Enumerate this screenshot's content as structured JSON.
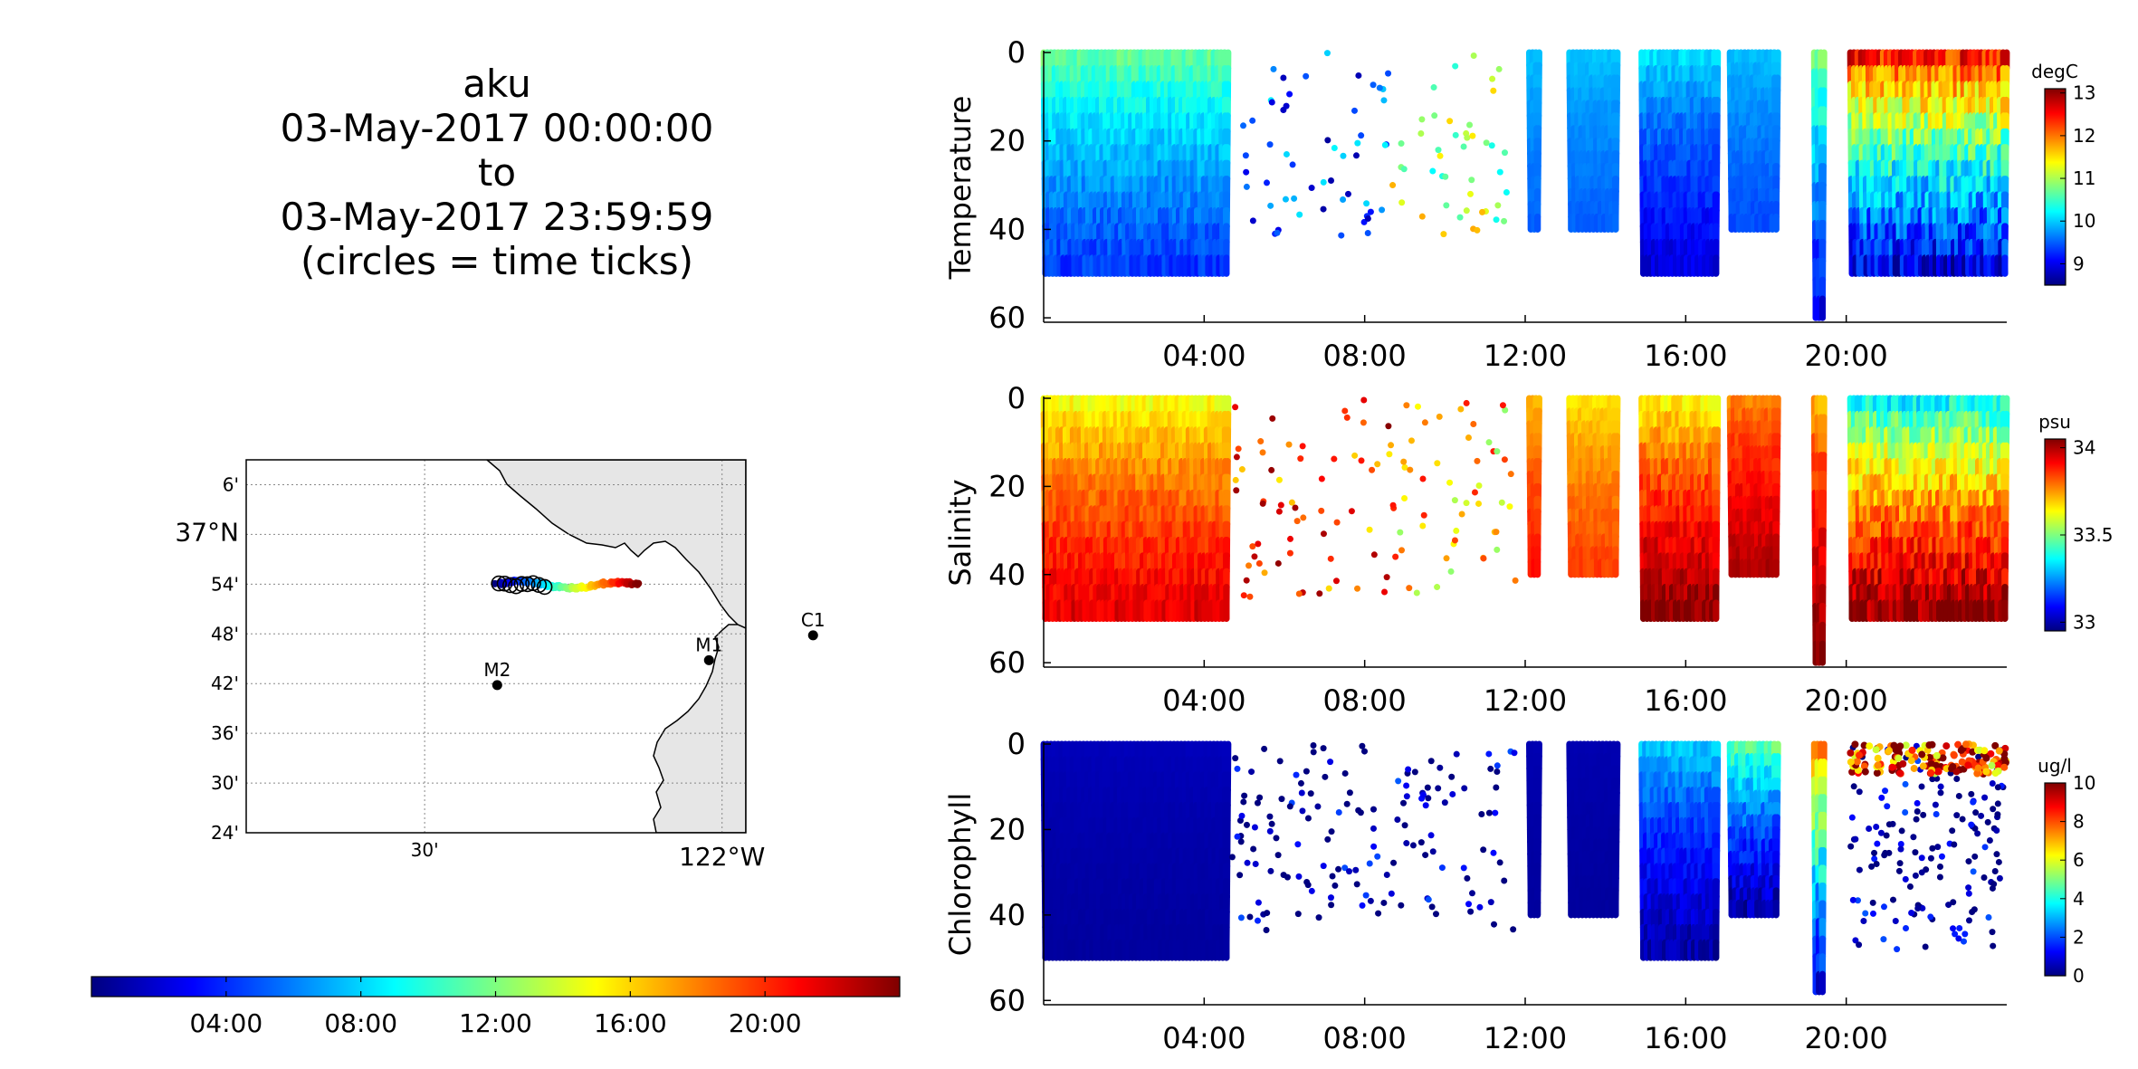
{
  "title": {
    "lines": [
      "aku",
      "03-May-2017 00:00:00",
      "to",
      "03-May-2017 23:59:59",
      "(circles = time ticks)"
    ]
  },
  "colors": {
    "jet": [
      "#00007f",
      "#0000ff",
      "#007fff",
      "#00ffff",
      "#7fff7f",
      "#ffff00",
      "#ff7f00",
      "#ff0000",
      "#7f0000"
    ],
    "land": "#e6e6e6",
    "station": "#000000"
  },
  "map": {
    "lat_labels": [
      "6'",
      "37°N",
      "54'",
      "48'",
      "42'",
      "36'",
      "30'",
      "24'"
    ],
    "lat_values": [
      37.1,
      37.0,
      36.9,
      36.8,
      36.7,
      36.6,
      36.5,
      36.4
    ],
    "lon_labels": [
      "30'",
      "122°W"
    ],
    "lon_values": [
      -122.5,
      -122.0
    ],
    "lat_range": [
      36.4,
      37.15
    ],
    "lon_range": [
      -122.8,
      -121.96
    ],
    "stations": [
      {
        "name": "C1",
        "lon": -121.847,
        "lat": 36.797
      },
      {
        "name": "M1",
        "lon": -122.022,
        "lat": 36.747
      },
      {
        "name": "M2",
        "lon": -122.378,
        "lat": 36.697
      }
    ],
    "track_start": {
      "lon": -122.38,
      "lat": 36.9
    },
    "track_end": {
      "lon": -122.14,
      "lat": 36.897
    }
  },
  "time_colorbar": {
    "tick_labels": [
      "04:00",
      "08:00",
      "12:00",
      "16:00",
      "20:00"
    ],
    "tick_hours": [
      4,
      8,
      12,
      16,
      20
    ],
    "range_hours": [
      0,
      24
    ]
  },
  "chart_data": [
    {
      "type": "scatter",
      "ylabel": "Temperature",
      "x_tick_labels": [
        "04:00",
        "08:00",
        "12:00",
        "16:00",
        "20:00"
      ],
      "x_tick_hours": [
        4,
        8,
        12,
        16,
        20
      ],
      "xlim_hours": [
        0,
        24
      ],
      "y_ticks": [
        0,
        20,
        40,
        60
      ],
      "ylim": [
        0,
        61
      ],
      "y_reversed": true,
      "colorbar": {
        "unit": "degC",
        "ticks": [
          9,
          10,
          11,
          12,
          13
        ],
        "range": [
          8.5,
          13.1
        ]
      },
      "profile_segments": [
        {
          "start": 0.0,
          "end": 4.6,
          "max_depth": 50,
          "surface": 10.8,
          "bottom": 9.3
        },
        {
          "start": 12.1,
          "end": 12.35,
          "max_depth": 40,
          "surface": 10.0,
          "bottom": 9.5
        },
        {
          "start": 13.1,
          "end": 14.3,
          "max_depth": 40,
          "surface": 10.0,
          "bottom": 9.5
        },
        {
          "start": 14.9,
          "end": 16.8,
          "max_depth": 50,
          "surface": 10.2,
          "bottom": 8.9
        },
        {
          "start": 17.1,
          "end": 18.3,
          "max_depth": 40,
          "surface": 10.0,
          "bottom": 9.4
        },
        {
          "start": 19.2,
          "end": 19.45,
          "max_depth": 60,
          "surface": 11.0,
          "bottom": 9.0
        },
        {
          "start": 20.1,
          "end": 24.0,
          "max_depth": 50,
          "surface": 12.8,
          "bottom": 8.9
        }
      ],
      "scatter_windows": [
        {
          "start": 4.7,
          "end": 8.6,
          "count": 55,
          "max_depth": 42,
          "value": 9.4
        },
        {
          "start": 8.6,
          "end": 11.6,
          "count": 45,
          "max_depth": 42,
          "value": 11.0
        }
      ]
    },
    {
      "type": "scatter",
      "ylabel": "Salinity",
      "x_tick_labels": [
        "04:00",
        "08:00",
        "12:00",
        "16:00",
        "20:00"
      ],
      "x_tick_hours": [
        4,
        8,
        12,
        16,
        20
      ],
      "xlim_hours": [
        0,
        24
      ],
      "y_ticks": [
        0,
        20,
        40,
        60
      ],
      "ylim": [
        0,
        61
      ],
      "y_reversed": true,
      "colorbar": {
        "unit": "psu",
        "ticks": [
          33,
          33.5,
          34
        ],
        "range": [
          32.95,
          34.05
        ]
      },
      "profile_segments": [
        {
          "start": 0.0,
          "end": 4.6,
          "max_depth": 50,
          "surface": 33.6,
          "bottom": 33.95
        },
        {
          "start": 12.1,
          "end": 12.35,
          "max_depth": 40,
          "surface": 33.7,
          "bottom": 33.9
        },
        {
          "start": 13.1,
          "end": 14.3,
          "max_depth": 40,
          "surface": 33.65,
          "bottom": 33.85
        },
        {
          "start": 14.9,
          "end": 16.8,
          "max_depth": 50,
          "surface": 33.6,
          "bottom": 34.05
        },
        {
          "start": 17.1,
          "end": 18.3,
          "max_depth": 40,
          "surface": 33.75,
          "bottom": 34.0
        },
        {
          "start": 19.2,
          "end": 19.45,
          "max_depth": 60,
          "surface": 33.7,
          "bottom": 34.05
        },
        {
          "start": 20.1,
          "end": 24.0,
          "max_depth": 50,
          "surface": 33.3,
          "bottom": 34.05
        }
      ],
      "scatter_windows": [
        {
          "start": 4.7,
          "end": 8.6,
          "count": 60,
          "max_depth": 46,
          "value": 33.85
        },
        {
          "start": 8.6,
          "end": 11.8,
          "count": 55,
          "max_depth": 46,
          "value": 33.7
        }
      ]
    },
    {
      "type": "scatter",
      "ylabel": "Chlorophyll",
      "x_tick_labels": [
        "04:00",
        "08:00",
        "12:00",
        "16:00",
        "20:00"
      ],
      "x_tick_hours": [
        4,
        8,
        12,
        16,
        20
      ],
      "xlim_hours": [
        0,
        24
      ],
      "y_ticks": [
        0,
        20,
        40,
        60
      ],
      "ylim": [
        0,
        61
      ],
      "y_reversed": true,
      "colorbar": {
        "unit": "ug/l",
        "ticks": [
          0,
          2,
          4,
          6,
          8,
          10
        ],
        "range": [
          0,
          10
        ]
      },
      "profile_segments": [
        {
          "start": 0.0,
          "end": 4.6,
          "max_depth": 50,
          "surface": 0.6,
          "bottom": 0.3
        },
        {
          "start": 12.1,
          "end": 12.35,
          "max_depth": 40,
          "surface": 0.5,
          "bottom": 0.3
        },
        {
          "start": 13.1,
          "end": 14.3,
          "max_depth": 40,
          "surface": 0.5,
          "bottom": 0.3
        },
        {
          "start": 14.9,
          "end": 16.8,
          "max_depth": 50,
          "surface": 3.5,
          "bottom": 0.3
        },
        {
          "start": 17.1,
          "end": 18.3,
          "max_depth": 40,
          "surface": 5.0,
          "bottom": 0.3
        },
        {
          "start": 19.2,
          "end": 19.45,
          "max_depth": 58,
          "surface": 8.0,
          "bottom": 1.0
        }
      ],
      "scatter_windows": [
        {
          "start": 4.7,
          "end": 8.6,
          "count": 90,
          "max_depth": 44,
          "value": 0.4
        },
        {
          "start": 8.6,
          "end": 11.8,
          "count": 60,
          "max_depth": 44,
          "value": 0.4
        },
        {
          "start": 20.1,
          "end": 24.0,
          "count": 150,
          "max_depth": 48,
          "value": 0.4
        }
      ],
      "surface_band": {
        "start": 20.1,
        "end": 24.0,
        "count": 160,
        "max_depth": 7,
        "value": 8.5
      }
    }
  ]
}
